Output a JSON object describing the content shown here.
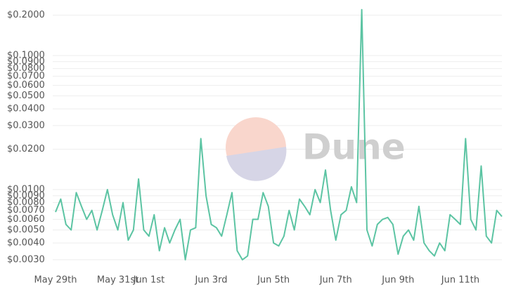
{
  "chart_data": {
    "type": "line",
    "log_y": true,
    "grid": true,
    "watermark": "Dune",
    "categories": [
      "May 29th",
      null,
      null,
      null,
      null,
      null,
      null,
      null,
      null,
      null,
      null,
      null,
      "May 31st",
      null,
      null,
      null,
      null,
      null,
      "Jun 1st",
      null,
      null,
      null,
      null,
      null,
      null,
      null,
      null,
      null,
      null,
      null,
      "Jun 3rd",
      null,
      null,
      null,
      null,
      null,
      null,
      null,
      null,
      null,
      null,
      null,
      "Jun 5th",
      null,
      null,
      null,
      null,
      null,
      null,
      null,
      null,
      null,
      null,
      null,
      "Jun 7th",
      null,
      null,
      null,
      null,
      null,
      null,
      null,
      null,
      null,
      null,
      null,
      "Jun 9th",
      null,
      null,
      null,
      null,
      null,
      null,
      null,
      null,
      null,
      null,
      null,
      "Jun 11th",
      null,
      null,
      null,
      null,
      null,
      null,
      null,
      null
    ],
    "series": [
      {
        "color": "#5cc4a3",
        "values": [
          0.0068,
          0.0085,
          0.0055,
          0.005,
          0.0095,
          0.0075,
          0.006,
          0.007,
          0.005,
          0.007,
          0.01,
          0.0065,
          0.005,
          0.008,
          0.0042,
          0.005,
          0.012,
          0.005,
          0.0045,
          0.0065,
          0.0035,
          0.0052,
          0.004,
          0.005,
          0.006,
          0.003,
          0.005,
          0.0052,
          0.024,
          0.009,
          0.0055,
          0.0052,
          0.0045,
          0.0065,
          0.0095,
          0.0035,
          0.003,
          0.0032,
          0.006,
          0.006,
          0.0095,
          0.0075,
          0.004,
          0.0038,
          0.0045,
          0.007,
          0.005,
          0.0085,
          0.0075,
          0.0065,
          0.01,
          0.008,
          0.014,
          0.007,
          0.0042,
          0.0065,
          0.007,
          0.0105,
          0.008,
          0.22,
          0.005,
          0.0038,
          0.0055,
          0.006,
          0.0062,
          0.0055,
          0.0033,
          0.0045,
          0.005,
          0.0042,
          0.0075,
          0.004,
          0.0035,
          0.0032,
          0.004,
          0.0035,
          0.0065,
          0.006,
          0.0055,
          0.024,
          0.006,
          0.005,
          0.015,
          0.0045,
          0.004,
          0.007,
          0.0063
        ]
      }
    ],
    "ylim": [
      0.0025,
      0.23
    ],
    "yticks": [
      {
        "value": 0.2,
        "label": "$0.2000"
      },
      {
        "value": 0.1,
        "label": "$0.1000"
      },
      {
        "value": 0.09,
        "label": "$0.0900"
      },
      {
        "value": 0.08,
        "label": "$0.0800"
      },
      {
        "value": 0.07,
        "label": "$0.0700"
      },
      {
        "value": 0.06,
        "label": "$0.0600"
      },
      {
        "value": 0.05,
        "label": "$0.0500"
      },
      {
        "value": 0.04,
        "label": "$0.0400"
      },
      {
        "value": 0.03,
        "label": "$0.0300"
      },
      {
        "value": 0.02,
        "label": "$0.0200"
      },
      {
        "value": 0.01,
        "label": "$0.0100"
      },
      {
        "value": 0.009,
        "label": "$0.0090"
      },
      {
        "value": 0.008,
        "label": "$0.0080"
      },
      {
        "value": 0.007,
        "label": "$0.0070"
      },
      {
        "value": 0.006,
        "label": "$0.0060"
      },
      {
        "value": 0.005,
        "label": "$0.0050"
      },
      {
        "value": 0.004,
        "label": "$0.0040"
      },
      {
        "value": 0.003,
        "label": "$0.0030"
      }
    ]
  }
}
